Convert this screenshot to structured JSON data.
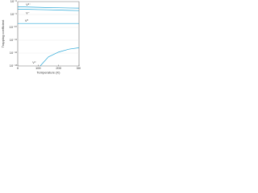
{
  "chart_data": {
    "type": "line",
    "xlabel": "Temperature (K)",
    "ylabel": "Trapping coefficient",
    "xlim": [
      0,
      300
    ],
    "xticks": [
      0,
      100,
      200,
      300
    ],
    "ylim": [
      1e-13,
      1e-08
    ],
    "yticks": [
      {
        "value": 1e-08,
        "label": "10⁻⁸"
      },
      {
        "value": 1e-09,
        "label": "10⁻⁹"
      },
      {
        "value": 1e-10,
        "label": "10⁻¹⁰"
      },
      {
        "value": 1e-11,
        "label": "10⁻¹¹"
      },
      {
        "value": 1e-12,
        "label": "10⁻¹²"
      },
      {
        "value": 1e-13,
        "label": "10⁻¹³"
      }
    ],
    "log_y": true,
    "series": [
      {
        "name": "V²⁻",
        "color": "#2aa8d8",
        "x": [
          0,
          50,
          100,
          150,
          200,
          250,
          300
        ],
        "values": [
          4e-09,
          3.8e-09,
          3.6e-09,
          3.4e-09,
          3.3e-09,
          3.2e-09,
          3.1e-09
        ]
      },
      {
        "name": "V⁻",
        "color": "#2aa8d8",
        "x": [
          0,
          50,
          100,
          150,
          200,
          250,
          300
        ],
        "values": [
          2.6e-09,
          2.5e-09,
          2.4e-09,
          2.3e-09,
          2.2e-09,
          2.1e-09,
          2e-09
        ]
      },
      {
        "name": "V⁰",
        "color": "#2aa8d8",
        "x": [
          0,
          50,
          100,
          150,
          200,
          250,
          300
        ],
        "values": [
          2e-10,
          2e-10,
          2e-10,
          2e-10,
          2e-10,
          2e-10,
          2e-10
        ]
      },
      {
        "name": "V⁺",
        "color": "#2aa8d8",
        "x": [
          110,
          150,
          200,
          250,
          300
        ],
        "values": [
          1e-13,
          5e-13,
          1.2e-12,
          2e-12,
          2.6e-12
        ]
      }
    ]
  }
}
